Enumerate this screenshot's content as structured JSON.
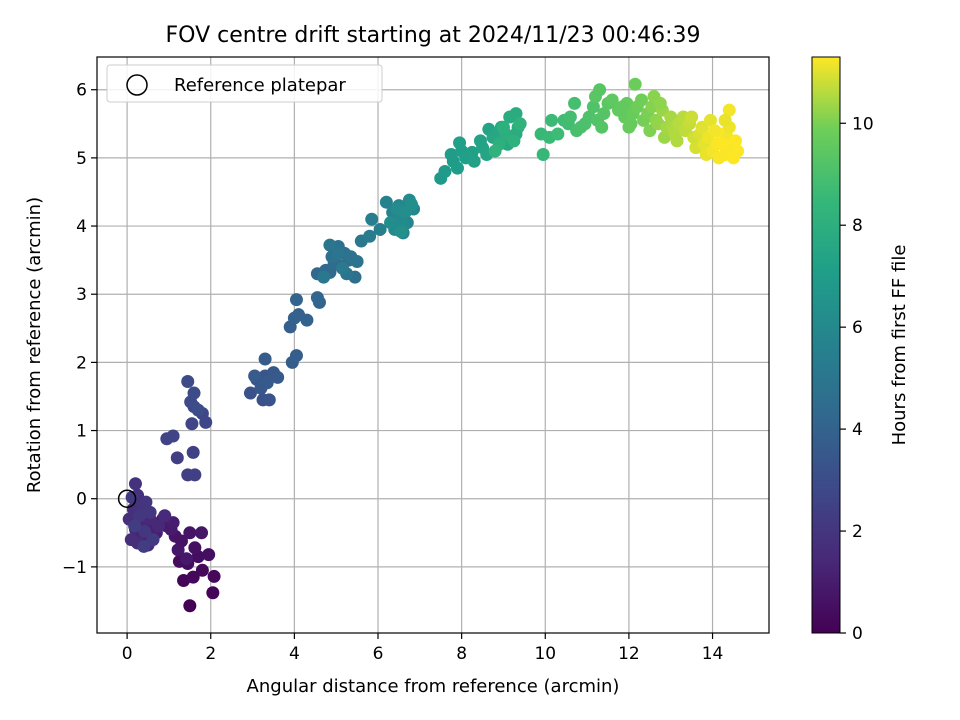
{
  "chart_data": {
    "type": "scatter",
    "title": "FOV centre drift starting at 2024/11/23 00:46:39",
    "xlabel": "Angular distance from reference (arcmin)",
    "ylabel": "Rotation from reference (arcmin)",
    "xlim": [
      -0.72,
      15.35
    ],
    "ylim": [
      -1.97,
      6.48
    ],
    "x_ticks": [
      "0",
      "2",
      "4",
      "6",
      "8",
      "10",
      "12",
      "14"
    ],
    "y_ticks": [
      "−1",
      "0",
      "1",
      "2",
      "3",
      "4",
      "5",
      "6"
    ],
    "grid": true,
    "legend": {
      "label": "Reference platepar",
      "placement": "top-left"
    },
    "reference_point": {
      "x": 0,
      "y": 0
    },
    "colorbar": {
      "label": "Hours from first FF file",
      "colormap": "viridis",
      "range": [
        0,
        11.3
      ],
      "ticks": [
        "0",
        "2",
        "4",
        "6",
        "8",
        "10"
      ]
    },
    "series": [
      {
        "columns": [
          "x",
          "y",
          "hours"
        ],
        "points": [
          [
            1.5,
            -1.57,
            0.05
          ],
          [
            2.05,
            -1.38,
            0.1
          ],
          [
            1.35,
            -1.2,
            0.15
          ],
          [
            1.58,
            -1.15,
            0.2
          ],
          [
            2.08,
            -1.14,
            0.25
          ],
          [
            1.8,
            -1.05,
            0.3
          ],
          [
            1.45,
            -0.95,
            0.35
          ],
          [
            1.25,
            -0.92,
            0.4
          ],
          [
            1.7,
            -0.85,
            0.45
          ],
          [
            1.95,
            -0.82,
            0.5
          ],
          [
            1.62,
            -0.72,
            0.55
          ],
          [
            1.3,
            -0.62,
            0.6
          ],
          [
            1.15,
            -0.55,
            0.65
          ],
          [
            1.5,
            -0.5,
            0.7
          ],
          [
            1.78,
            -0.5,
            0.75
          ],
          [
            1.22,
            -0.75,
            0.8
          ],
          [
            1.42,
            -0.88,
            0.85
          ],
          [
            1.05,
            -0.45,
            0.9
          ],
          [
            0.95,
            -0.4,
            0.95
          ],
          [
            0.85,
            -0.3,
            1.0
          ],
          [
            1.1,
            -0.35,
            1.05
          ],
          [
            0.7,
            -0.5,
            1.1
          ],
          [
            0.6,
            -0.45,
            1.15
          ],
          [
            0.45,
            -0.62,
            1.2
          ],
          [
            0.3,
            -0.55,
            1.25
          ],
          [
            0.2,
            -0.45,
            1.3
          ],
          [
            0.35,
            -0.35,
            1.35
          ],
          [
            0.55,
            -0.3,
            1.4
          ],
          [
            0.75,
            -0.4,
            1.45
          ],
          [
            0.9,
            -0.25,
            1.5
          ],
          [
            0.5,
            -0.68,
            1.55
          ],
          [
            0.25,
            -0.65,
            1.6
          ],
          [
            0.1,
            -0.6,
            1.65
          ],
          [
            0.05,
            -0.3,
            1.7
          ],
          [
            0.15,
            -0.15,
            1.75
          ],
          [
            0.25,
            0.05,
            1.8
          ],
          [
            0.2,
            0.22,
            1.85
          ],
          [
            0.35,
            -0.1,
            1.9
          ],
          [
            0.45,
            -0.05,
            1.95
          ],
          [
            0.55,
            -0.2,
            2.0
          ],
          [
            0.42,
            -0.48,
            2.05
          ],
          [
            0.3,
            -0.25,
            2.1
          ],
          [
            0.12,
            0.02,
            2.15
          ],
          [
            0.62,
            -0.6,
            2.2
          ],
          [
            0.4,
            -0.7,
            2.25
          ],
          [
            0.18,
            -0.4,
            2.3
          ],
          [
            1.2,
            0.6,
            2.35
          ],
          [
            1.45,
            0.35,
            2.4
          ],
          [
            1.62,
            0.35,
            2.45
          ],
          [
            1.58,
            0.68,
            2.5
          ],
          [
            0.95,
            0.88,
            2.55
          ],
          [
            1.1,
            0.92,
            2.6
          ],
          [
            1.55,
            1.1,
            2.65
          ],
          [
            1.88,
            1.12,
            2.7
          ],
          [
            1.8,
            1.25,
            2.75
          ],
          [
            1.6,
            1.35,
            2.8
          ],
          [
            1.52,
            1.42,
            2.85
          ],
          [
            1.6,
            1.55,
            2.9
          ],
          [
            1.45,
            1.72,
            2.95
          ],
          [
            1.7,
            1.3,
            3.0
          ],
          [
            2.95,
            1.55,
            3.2
          ],
          [
            3.25,
            1.45,
            3.25
          ],
          [
            3.4,
            1.45,
            3.3
          ],
          [
            3.1,
            1.75,
            3.35
          ],
          [
            3.3,
            1.8,
            3.4
          ],
          [
            3.5,
            1.85,
            3.45
          ],
          [
            3.2,
            1.62,
            3.5
          ],
          [
            3.6,
            1.78,
            3.55
          ],
          [
            3.35,
            1.7,
            3.6
          ],
          [
            3.05,
            1.8,
            3.65
          ],
          [
            3.3,
            2.05,
            3.7
          ],
          [
            3.95,
            2.0,
            3.75
          ],
          [
            4.05,
            2.1,
            3.8
          ],
          [
            3.9,
            2.52,
            3.85
          ],
          [
            4.0,
            2.65,
            3.9
          ],
          [
            4.1,
            2.7,
            3.95
          ],
          [
            4.3,
            2.62,
            4.0
          ],
          [
            4.05,
            2.92,
            4.05
          ],
          [
            4.6,
            2.88,
            4.1
          ],
          [
            4.55,
            2.95,
            4.15
          ],
          [
            4.55,
            3.3,
            4.3
          ],
          [
            4.75,
            3.35,
            4.35
          ],
          [
            4.85,
            3.32,
            4.4
          ],
          [
            4.95,
            3.45,
            4.45
          ],
          [
            5.1,
            3.42,
            4.5
          ],
          [
            5.3,
            3.5,
            4.55
          ],
          [
            5.45,
            3.25,
            4.6
          ],
          [
            5.2,
            3.6,
            4.65
          ],
          [
            5.05,
            3.7,
            4.7
          ],
          [
            4.9,
            3.55,
            4.75
          ],
          [
            5.35,
            3.55,
            4.8
          ],
          [
            5.5,
            3.48,
            4.85
          ],
          [
            5.25,
            3.3,
            4.9
          ],
          [
            5.05,
            3.6,
            4.95
          ],
          [
            4.85,
            3.72,
            5.0
          ],
          [
            5.6,
            3.78,
            5.05
          ],
          [
            4.7,
            3.25,
            5.1
          ],
          [
            5.15,
            3.38,
            5.15
          ],
          [
            5.8,
            3.85,
            5.3
          ],
          [
            5.85,
            4.1,
            5.4
          ],
          [
            6.05,
            3.95,
            5.5
          ],
          [
            6.2,
            4.35,
            5.6
          ],
          [
            6.35,
            4.2,
            5.65
          ],
          [
            6.5,
            4.15,
            5.7
          ],
          [
            6.6,
            3.9,
            5.75
          ],
          [
            6.7,
            4.05,
            5.8
          ],
          [
            6.5,
            4.3,
            5.85
          ],
          [
            6.85,
            4.25,
            5.9
          ],
          [
            6.55,
            4.1,
            5.95
          ],
          [
            6.4,
            3.95,
            6.0
          ],
          [
            6.75,
            4.38,
            6.05
          ],
          [
            6.6,
            4.0,
            6.1
          ],
          [
            6.45,
            4.25,
            6.15
          ],
          [
            6.3,
            4.05,
            6.2
          ],
          [
            6.65,
            4.2,
            6.25
          ],
          [
            6.8,
            4.32,
            6.3
          ],
          [
            6.55,
            3.92,
            6.35
          ],
          [
            7.5,
            4.7,
            6.8
          ],
          [
            7.6,
            4.8,
            6.85
          ],
          [
            7.8,
            4.95,
            6.9
          ],
          [
            7.75,
            5.05,
            6.95
          ],
          [
            7.9,
            4.85,
            7.0
          ],
          [
            8.0,
            5.1,
            7.05
          ],
          [
            7.95,
            5.22,
            7.1
          ],
          [
            8.1,
            5.0,
            7.15
          ],
          [
            8.25,
            5.08,
            7.2
          ],
          [
            8.3,
            4.95,
            7.25
          ],
          [
            8.45,
            5.25,
            7.3
          ],
          [
            8.5,
            5.15,
            7.35
          ],
          [
            8.65,
            5.42,
            7.4
          ],
          [
            8.6,
            5.05,
            7.45
          ],
          [
            8.75,
            5.3,
            7.5
          ],
          [
            8.85,
            5.35,
            7.55
          ],
          [
            8.95,
            5.45,
            7.6
          ],
          [
            9.1,
            5.2,
            7.65
          ],
          [
            9.2,
            5.3,
            7.7
          ],
          [
            9.3,
            5.35,
            7.75
          ],
          [
            9.15,
            5.6,
            7.8
          ],
          [
            9.3,
            5.65,
            7.85
          ],
          [
            9.35,
            5.45,
            7.9
          ],
          [
            9.05,
            5.35,
            7.95
          ],
          [
            8.9,
            5.2,
            8.0
          ],
          [
            9.0,
            5.45,
            8.05
          ],
          [
            9.25,
            5.25,
            8.1
          ],
          [
            8.8,
            5.1,
            8.15
          ],
          [
            9.4,
            5.5,
            8.2
          ],
          [
            9.95,
            5.05,
            8.5
          ],
          [
            9.9,
            5.35,
            8.55
          ],
          [
            10.1,
            5.3,
            8.6
          ],
          [
            10.15,
            5.55,
            8.65
          ],
          [
            10.3,
            5.35,
            8.7
          ],
          [
            10.45,
            5.55,
            8.75
          ],
          [
            10.55,
            5.5,
            8.8
          ],
          [
            10.6,
            5.6,
            8.85
          ],
          [
            10.7,
            5.8,
            8.9
          ],
          [
            10.75,
            5.4,
            8.95
          ],
          [
            10.85,
            5.45,
            9.0
          ],
          [
            10.95,
            5.5,
            9.05
          ],
          [
            11.05,
            5.6,
            9.1
          ],
          [
            11.15,
            5.75,
            9.15
          ],
          [
            11.25,
            5.55,
            9.2
          ],
          [
            11.35,
            5.45,
            9.25
          ],
          [
            11.4,
            5.65,
            9.3
          ],
          [
            11.3,
            6.0,
            9.35
          ],
          [
            11.2,
            5.9,
            9.4
          ],
          [
            11.5,
            5.8,
            9.45
          ],
          [
            11.6,
            5.85,
            9.5
          ],
          [
            11.75,
            5.7,
            9.55
          ],
          [
            11.9,
            5.6,
            9.6
          ],
          [
            11.95,
            5.8,
            9.65
          ],
          [
            12.05,
            5.5,
            9.7
          ],
          [
            12.1,
            5.65,
            9.75
          ],
          [
            12.15,
            6.08,
            9.8
          ],
          [
            12.2,
            5.75,
            9.85
          ],
          [
            12.3,
            5.85,
            9.9
          ],
          [
            12.35,
            5.55,
            9.95
          ],
          [
            12.45,
            5.65,
            10.0
          ],
          [
            12.5,
            5.4,
            10.05
          ],
          [
            12.55,
            5.75,
            10.1
          ],
          [
            12.6,
            5.9,
            10.15
          ],
          [
            12.65,
            5.55,
            10.2
          ],
          [
            12.7,
            5.5,
            10.25
          ],
          [
            12.8,
            5.7,
            10.3
          ],
          [
            12.85,
            5.3,
            10.35
          ],
          [
            12.9,
            5.45,
            10.4
          ],
          [
            13.0,
            5.6,
            10.45
          ],
          [
            13.05,
            5.45,
            10.5
          ],
          [
            13.1,
            5.35,
            10.55
          ],
          [
            13.2,
            5.5,
            10.6
          ],
          [
            13.3,
            5.6,
            10.65
          ],
          [
            13.35,
            5.4,
            10.7
          ],
          [
            13.45,
            5.5,
            10.75
          ],
          [
            13.5,
            5.6,
            10.8
          ],
          [
            13.55,
            5.3,
            10.85
          ],
          [
            13.6,
            5.15,
            10.9
          ],
          [
            13.7,
            5.35,
            10.95
          ],
          [
            13.75,
            5.45,
            11.0
          ],
          [
            13.8,
            5.2,
            11.05
          ],
          [
            13.85,
            5.05,
            11.1
          ],
          [
            13.9,
            5.3,
            11.15
          ],
          [
            14.0,
            5.1,
            11.2
          ],
          [
            14.1,
            5.2,
            11.25
          ],
          [
            14.2,
            5.35,
            11.3
          ],
          [
            14.3,
            5.05,
            11.25
          ],
          [
            14.35,
            5.3,
            11.2
          ],
          [
            14.4,
            5.45,
            11.15
          ],
          [
            14.45,
            5.15,
            11.25
          ],
          [
            14.5,
            5.0,
            11.3
          ],
          [
            14.55,
            5.25,
            11.3
          ],
          [
            14.4,
            5.7,
            11.2
          ],
          [
            14.3,
            5.55,
            11.1
          ],
          [
            14.15,
            5.0,
            11.25
          ],
          [
            14.6,
            5.1,
            11.28
          ],
          [
            14.25,
            5.2,
            11.3
          ],
          [
            13.95,
            5.55,
            11.05
          ],
          [
            14.05,
            5.4,
            11.2
          ],
          [
            12.75,
            5.8,
            10.2
          ],
          [
            12.0,
            5.45,
            9.7
          ],
          [
            11.85,
            5.75,
            9.6
          ],
          [
            13.15,
            5.25,
            10.55
          ]
        ]
      }
    ]
  }
}
